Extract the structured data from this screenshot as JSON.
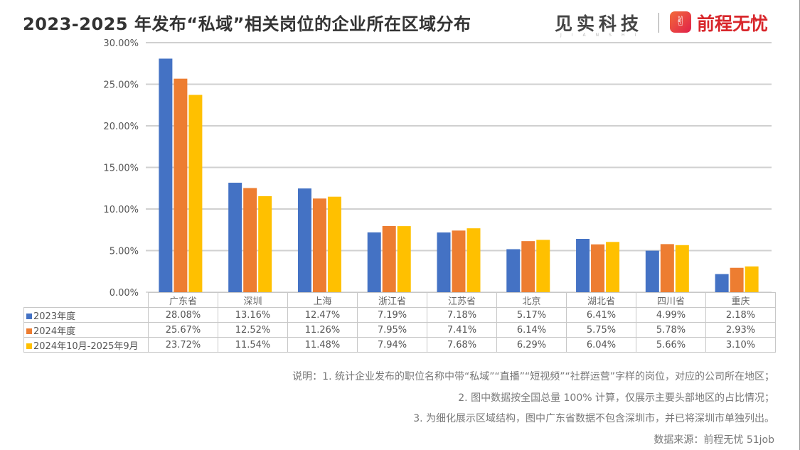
{
  "header": {
    "title": "2023-2025 年发布“私域”相关岗位的企业所在区域分布",
    "brand_jianshi": "见实科技",
    "brand_jianshi_sub": "JIANSHI",
    "brand_51job": "前程无忧"
  },
  "colors": {
    "2023": "#4472C4",
    "2024": "#ED7D31",
    "2024-2025": "#FFC000"
  },
  "chart_data": {
    "type": "bar",
    "categories": [
      "广东省",
      "深圳",
      "上海",
      "浙江省",
      "江苏省",
      "北京",
      "湖北省",
      "四川省",
      "重庆"
    ],
    "series": [
      {
        "name": "2023年度",
        "values": [
          28.08,
          13.16,
          12.47,
          7.19,
          7.18,
          5.17,
          6.41,
          4.99,
          2.18
        ],
        "labels": [
          "28.08%",
          "13.16%",
          "12.47%",
          "7.19%",
          "7.18%",
          "5.17%",
          "6.41%",
          "4.99%",
          "2.18%"
        ]
      },
      {
        "name": "2024年度",
        "values": [
          25.67,
          12.52,
          11.26,
          7.95,
          7.41,
          6.14,
          5.75,
          5.78,
          2.93
        ],
        "labels": [
          "25.67%",
          "12.52%",
          "11.26%",
          "7.95%",
          "7.41%",
          "6.14%",
          "5.75%",
          "5.78%",
          "2.93%"
        ]
      },
      {
        "name": "2024年10月-2025年9月",
        "values": [
          23.72,
          11.54,
          11.48,
          7.94,
          7.68,
          6.29,
          6.04,
          5.66,
          3.1
        ],
        "labels": [
          "23.72%",
          "11.54%",
          "11.48%",
          "7.94%",
          "7.68%",
          "6.29%",
          "6.04%",
          "5.66%",
          "3.10%"
        ]
      }
    ],
    "ylim": [
      0,
      30
    ],
    "yticks": [
      "0.00%",
      "5.00%",
      "10.00%",
      "15.00%",
      "20.00%",
      "25.00%",
      "30.00%"
    ],
    "grid": true,
    "legend": "data-table"
  },
  "notes": [
    "说明：1. 统计企业发布的职位名称中带“私域”“直播”“短视频”“社群运营”字样的岗位，对应的公司所在地区；",
    "2. 图中数据按全国总量 100% 计算，仅展示主要头部地区的占比情况；",
    "3. 为细化展示区域结构，图中广东省数据不包含深圳市，并已将深圳市单独列出。",
    "数据来源：前程无忧 51job"
  ]
}
